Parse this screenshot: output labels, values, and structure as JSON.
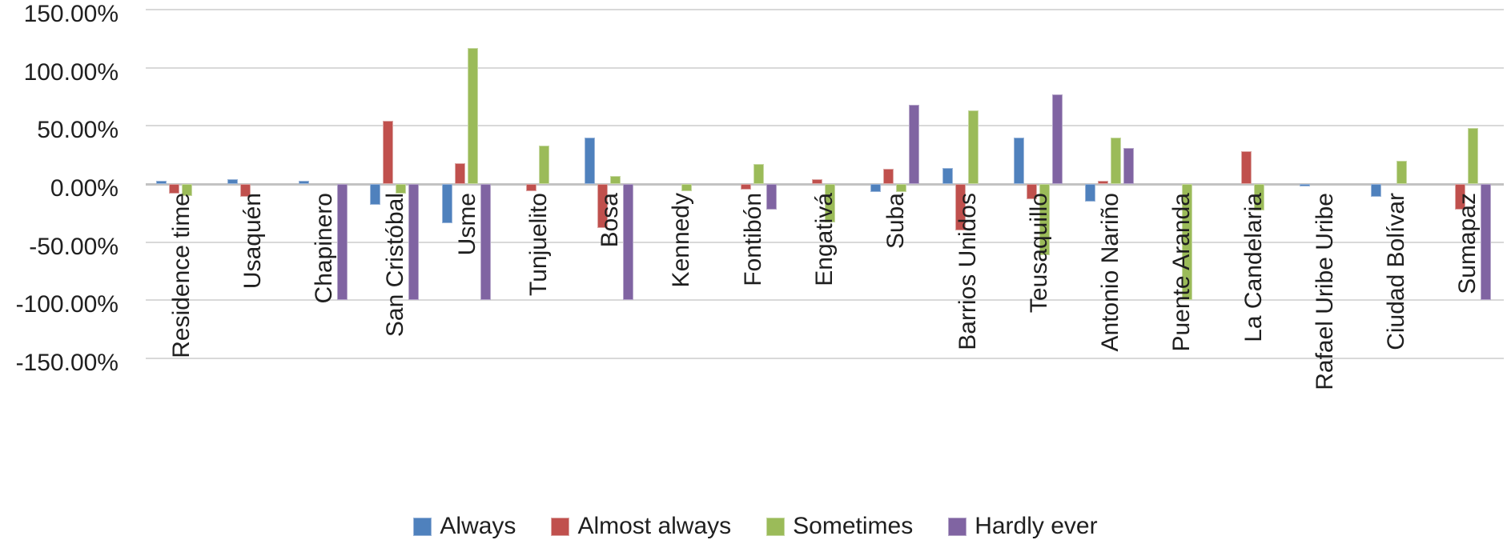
{
  "chart_data": {
    "type": "bar",
    "title": "",
    "categories": [
      "Residence time",
      "Usaquén",
      "Chapinero",
      "San Cristóbal",
      "Usme",
      "Tunjuelito",
      "Bosa",
      "Kennedy",
      "Fontibón",
      "Engativá",
      "Suba",
      "Barrios Unidos",
      "Teusaquillo",
      "Antonio Nariño",
      "Puente Aranda",
      "La Candelaria",
      "Rafael Uribe Uribe",
      "Ciudad Bolívar",
      "Sumapaz"
    ],
    "series": [
      {
        "name": "Always",
        "color": "#4f81bd",
        "border_color": "#9ab5d9",
        "values": [
          3,
          4,
          3,
          -18,
          -34,
          0,
          40,
          0,
          0,
          0,
          -7,
          14,
          40,
          -15,
          0,
          0,
          -2,
          -11,
          0
        ]
      },
      {
        "name": "Almost always",
        "color": "#c0504d",
        "border_color": "#dca7a5",
        "values": [
          -8,
          -11,
          0,
          54,
          18,
          -6,
          -38,
          0,
          -5,
          4,
          13,
          -40,
          -13,
          3,
          0,
          28,
          0,
          0,
          -22
        ]
      },
      {
        "name": "Sometimes",
        "color": "#9bbb59",
        "border_color": "#c6d8a2",
        "values": [
          -10,
          0,
          0,
          -8,
          117,
          33,
          7,
          -6,
          17,
          -33,
          -7,
          63,
          -61,
          40,
          -100,
          -23,
          0,
          20,
          48
        ]
      },
      {
        "name": "Hardly ever",
        "color": "#8064a2",
        "border_color": "#b5a6c9",
        "values": [
          0,
          0,
          -100,
          -100,
          -100,
          0,
          -100,
          0,
          -22,
          0,
          68,
          0,
          77,
          31,
          0,
          0,
          0,
          0,
          -100
        ]
      }
    ],
    "y_axis": {
      "unit": "%",
      "min": -150,
      "max": 150,
      "step": 50,
      "tick_values": [
        150,
        100,
        50,
        0,
        -50,
        -100,
        -150
      ],
      "tick_labels": [
        "150.00%",
        "100.00%",
        "50.00%",
        "0.00%",
        "-50.00%",
        "-100.00%",
        "-150.00%"
      ]
    },
    "legend": {
      "position": "bottom",
      "entries": [
        "Always",
        "Almost always",
        "Sometimes",
        "Hardly ever"
      ]
    },
    "grid": true,
    "colors": {
      "gridline": "#d9d9d9",
      "zero_line": "#c3c3c3",
      "text": "#1f1f1f",
      "background": "#ffffff"
    }
  }
}
